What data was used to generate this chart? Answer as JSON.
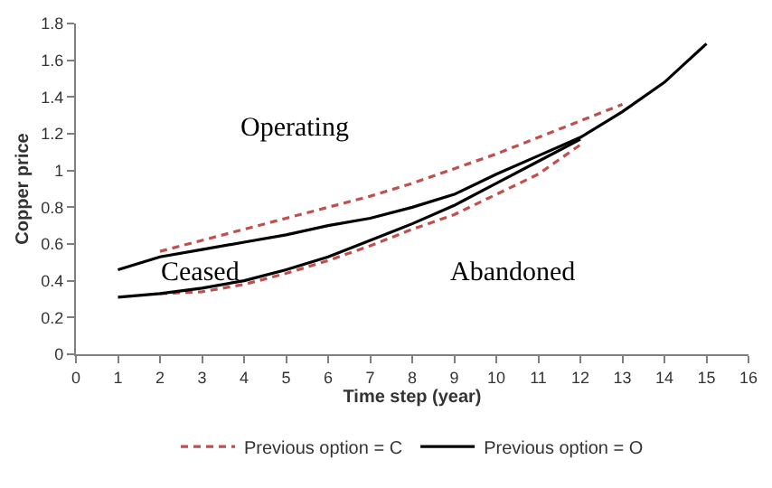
{
  "chart_data": {
    "type": "line",
    "xlabel": "Time step (year)",
    "ylabel": "Copper price",
    "xlim": [
      0,
      16
    ],
    "xticks": [
      0,
      1,
      2,
      3,
      4,
      5,
      6,
      7,
      8,
      9,
      10,
      11,
      12,
      13,
      14,
      15,
      16
    ],
    "ylim": [
      0,
      1.8
    ],
    "yticks": [
      0,
      0.2,
      0.4,
      0.6,
      0.8,
      1,
      1.2,
      1.4,
      1.6,
      1.8
    ],
    "legend": "bottom",
    "marker": "none",
    "series": [
      {
        "name": "Previous option = C",
        "color": "#c0504d",
        "line_style": "dashed",
        "x": [
          2,
          3,
          4,
          5,
          6,
          7,
          8,
          9,
          10,
          11,
          12,
          13
        ],
        "values": [
          0.56,
          0.62,
          0.68,
          0.74,
          0.8,
          0.86,
          0.93,
          1.01,
          1.09,
          1.18,
          1.27,
          1.36
        ]
      },
      {
        "color": "#c0504d",
        "line_style": "dashed",
        "x": [
          2,
          3,
          4,
          5,
          6,
          7,
          8,
          9,
          10,
          11,
          12
        ],
        "values": [
          0.33,
          0.34,
          0.38,
          0.44,
          0.51,
          0.59,
          0.68,
          0.76,
          0.87,
          0.98,
          1.14
        ]
      },
      {
        "name": "Previous option = O",
        "color": "#000000",
        "line_style": "solid",
        "x": [
          1,
          2,
          3,
          4,
          5,
          6,
          7,
          8,
          9,
          10,
          11,
          12,
          13,
          14,
          15
        ],
        "values": [
          0.46,
          0.53,
          0.57,
          0.61,
          0.65,
          0.7,
          0.74,
          0.8,
          0.87,
          0.98,
          1.08,
          1.18,
          1.32,
          1.48,
          1.69
        ]
      },
      {
        "color": "#000000",
        "line_style": "solid",
        "x": [
          1,
          2,
          3,
          4,
          5,
          6,
          7,
          8,
          9,
          10,
          11,
          12
        ],
        "values": [
          0.31,
          0.33,
          0.36,
          0.4,
          0.46,
          0.53,
          0.62,
          0.71,
          0.81,
          0.93,
          1.05,
          1.17
        ]
      }
    ],
    "annotations": [
      "Operating",
      "Ceased",
      "Abandoned"
    ]
  }
}
